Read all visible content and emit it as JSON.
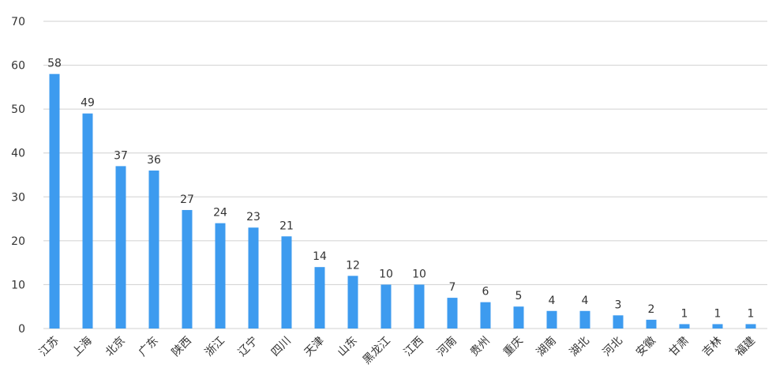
{
  "chart_data": {
    "type": "bar",
    "categories": [
      "江苏",
      "上海",
      "北京",
      "广东",
      "陕西",
      "浙江",
      "辽宁",
      "四川",
      "天津",
      "山东",
      "黑龙江",
      "江西",
      "河南",
      "贵州",
      "重庆",
      "湖南",
      "湖北",
      "河北",
      "安徽",
      "甘肃",
      "吉林",
      "福建"
    ],
    "values": [
      58,
      49,
      37,
      36,
      27,
      24,
      23,
      21,
      14,
      12,
      10,
      10,
      7,
      6,
      5,
      4,
      4,
      3,
      2,
      1,
      1,
      1
    ],
    "color": "#3d9bef",
    "ylim": [
      0,
      70
    ],
    "yticks": [
      0,
      10,
      20,
      30,
      40,
      50,
      60,
      70
    ],
    "grid": true
  }
}
